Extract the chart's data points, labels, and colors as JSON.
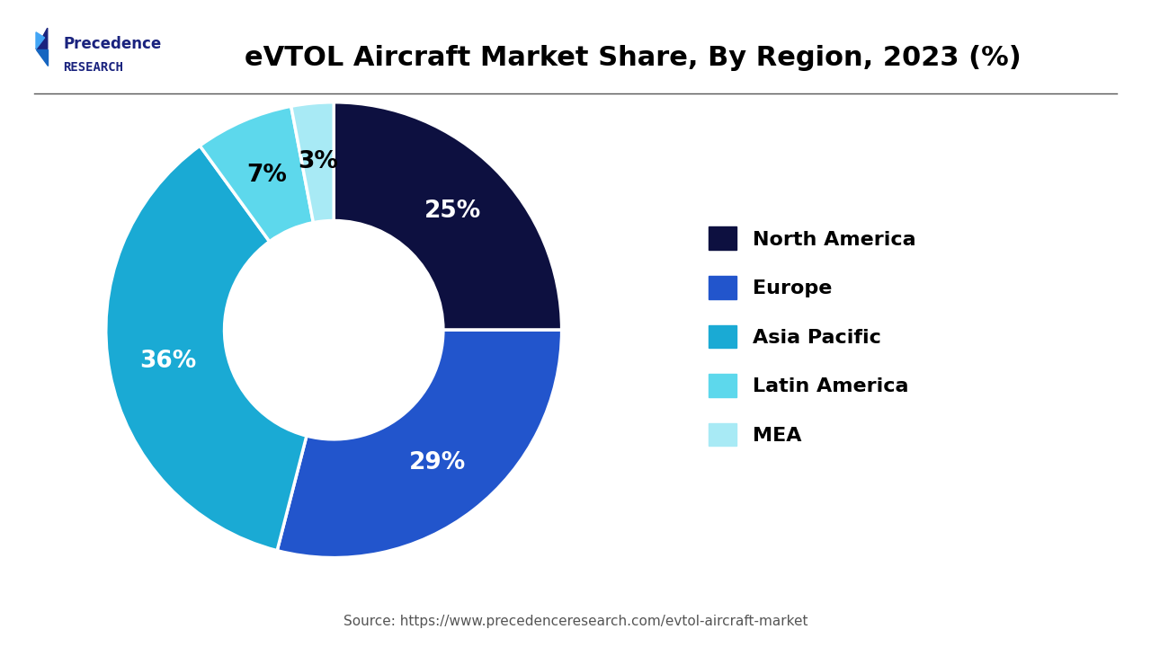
{
  "title": "eVTOL Aircraft Market Share, By Region, 2023 (%)",
  "labels": [
    "North America",
    "Europe",
    "Asia Pacific",
    "Latin America",
    "MEA"
  ],
  "values": [
    25,
    29,
    36,
    7,
    3
  ],
  "colors": [
    "#0d1040",
    "#2255cc",
    "#1aaad4",
    "#5dd8ec",
    "#a8eaf5"
  ],
  "pct_labels": [
    "25%",
    "29%",
    "36%",
    "7%",
    "3%"
  ],
  "pct_colors": [
    "white",
    "white",
    "white",
    "black",
    "black"
  ],
  "source_text": "Source: https://www.precedenceresearch.com/evtol-aircraft-market",
  "background_color": "#ffffff",
  "title_fontsize": 22,
  "legend_fontsize": 16,
  "pct_fontsize": 19,
  "startangle": 90
}
